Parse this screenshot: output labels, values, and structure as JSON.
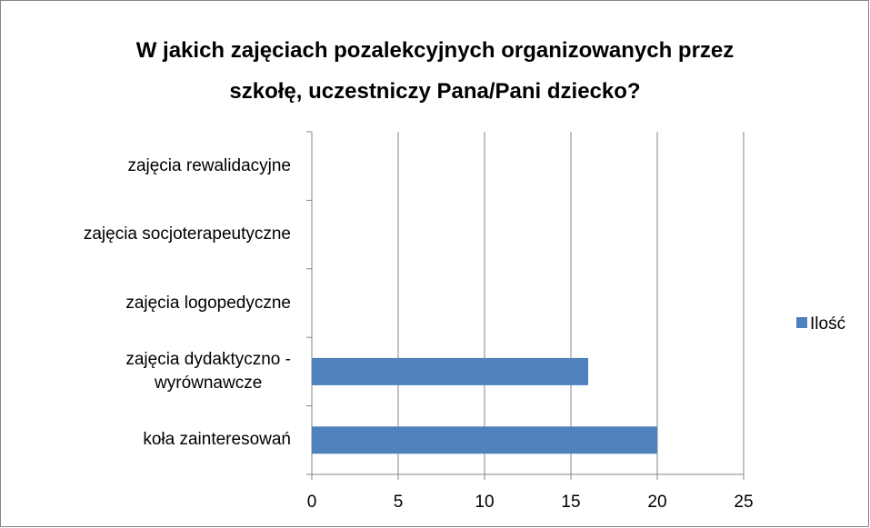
{
  "chart_data": {
    "type": "bar",
    "orientation": "horizontal",
    "title": "W jakich zajęciach pozalekcyjnych organizowanych przez\nszkołę, uczestniczy Pana/Pani dziecko?",
    "categories": [
      "koła zainteresowań",
      "zajęcia dydaktyczno -\nwyrównawcze",
      "zajęcia logopedyczne",
      "zajęcia socjoterapeutyczne",
      "zajęcia rewalidacyjne"
    ],
    "series": [
      {
        "name": "Ilość",
        "color": "#4f81bd",
        "values": [
          20,
          16,
          0,
          0,
          0
        ]
      }
    ],
    "xlim": [
      0,
      25
    ],
    "xticks": [
      0,
      5,
      10,
      15,
      20,
      25
    ],
    "grid": true,
    "legend": "right"
  }
}
